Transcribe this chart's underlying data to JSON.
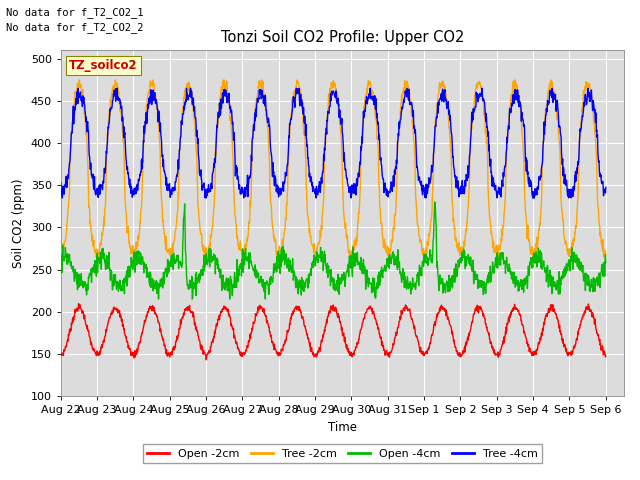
{
  "title": "Tonzi Soil CO2 Profile: Upper CO2",
  "ylabel": "Soil CO2 (ppm)",
  "xlabel": "Time",
  "ylim": [
    100,
    510
  ],
  "xlim_days": 15.5,
  "background_color": "#dcdcdc",
  "fig_background": "#ffffff",
  "no_data_text": [
    "No data for f_T2_CO2_1",
    "No data for f_T2_CO2_2"
  ],
  "legend_label_text": "TZ_soilco2",
  "legend_entries": [
    "Open -2cm",
    "Tree -2cm",
    "Open -4cm",
    "Tree -4cm"
  ],
  "legend_colors": [
    "#ff0000",
    "#ffa500",
    "#00bb00",
    "#0000ff"
  ],
  "series_colors": [
    "#ff0000",
    "#ffa500",
    "#00bb00",
    "#0000ff"
  ],
  "tick_labels": [
    "Aug 22",
    "Aug 23",
    "Aug 24",
    "Aug 25",
    "Aug 26",
    "Aug 27",
    "Aug 28",
    "Aug 29",
    "Aug 30",
    "Aug 31",
    "Sep 1",
    "Sep 2",
    "Sep 3",
    "Sep 4",
    "Sep 5",
    "Sep 6"
  ],
  "grid_color": "#ffffff",
  "linewidth": 1.0
}
